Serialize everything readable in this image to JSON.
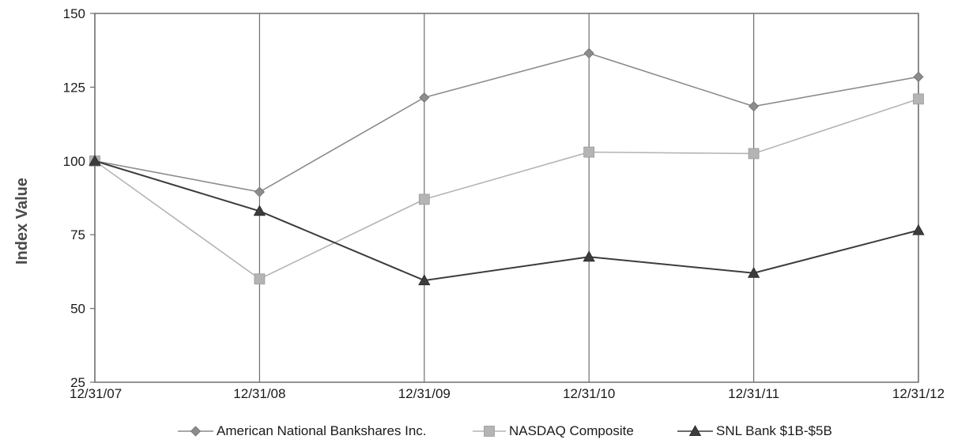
{
  "chart_data": {
    "type": "line",
    "title": "",
    "xlabel": "",
    "ylabel": "Index Value",
    "categories": [
      "12/31/07",
      "12/31/08",
      "12/31/09",
      "12/31/10",
      "12/31/11",
      "12/31/12"
    ],
    "ylim": [
      25,
      150
    ],
    "yticks": [
      "25",
      "50",
      "75",
      "100",
      "125",
      "150"
    ],
    "grid": false,
    "legend_position": "bottom",
    "series": [
      {
        "name": "American National Bankshares Inc.",
        "values": [
          100,
          89.5,
          121.5,
          136.5,
          118.5,
          128.5
        ],
        "marker": "diamond",
        "color": "#8c8c8c"
      },
      {
        "name": "NASDAQ Composite",
        "values": [
          100,
          60,
          87,
          103,
          102.5,
          121
        ],
        "marker": "square",
        "color": "#b4b4b4"
      },
      {
        "name": "SNL Bank $1B-$5B",
        "values": [
          100,
          83,
          59.5,
          67.5,
          62,
          76.5
        ],
        "marker": "triangle",
        "color": "#3c3c3c"
      }
    ]
  }
}
